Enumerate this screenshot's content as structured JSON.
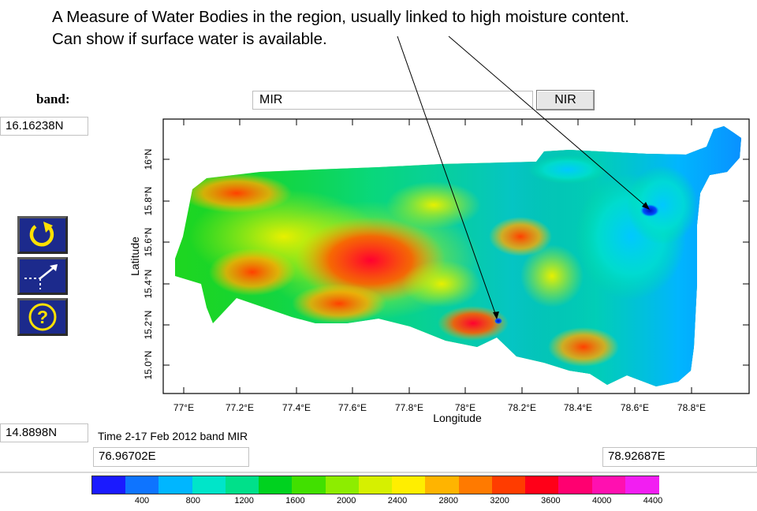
{
  "annotation": {
    "line1": "A Measure of Water Bodies in the region, usually linked to high moisture content.",
    "line2": "Can show if surface water is available."
  },
  "band": {
    "label": "band:",
    "value": "MIR",
    "nir_button_label": "NIR"
  },
  "coords": {
    "north": "16.16238N",
    "south": "14.8898N",
    "west": "76.96702E",
    "east": "78.92687E"
  },
  "toolbar": {
    "reset_icon": "refresh-icon",
    "zoom_icon": "zoom-extent-icon",
    "help_icon": "help-icon"
  },
  "plot": {
    "caption": "Time 2-17 Feb 2012 band MIR",
    "xlabel": "Longitude",
    "ylabel": "Latitude",
    "x_ticks": [
      "77°E",
      "77.2°E",
      "77.4°E",
      "77.6°E",
      "77.8°E",
      "78°E",
      "78.2°E",
      "78.4°E",
      "78.6°E",
      "78.8°E"
    ],
    "y_ticks": [
      "15.0°N",
      "15.2°N",
      "15.4°N",
      "15.6°N",
      "15.8°N",
      "16°N"
    ]
  },
  "colorbar": {
    "labels": [
      "400",
      "800",
      "1200",
      "1600",
      "2000",
      "2400",
      "2800",
      "3200",
      "3600",
      "4000",
      "4400"
    ],
    "colors": [
      "#1a1aff",
      "#0e74ff",
      "#00b6ff",
      "#00e5c9",
      "#00e08a",
      "#00d21f",
      "#41e000",
      "#8ded00",
      "#d6f000",
      "#ffee00",
      "#ffb400",
      "#ff7a00",
      "#ff3c00",
      "#ff0018",
      "#ff0070",
      "#ff10b0",
      "#f21ef2"
    ]
  }
}
